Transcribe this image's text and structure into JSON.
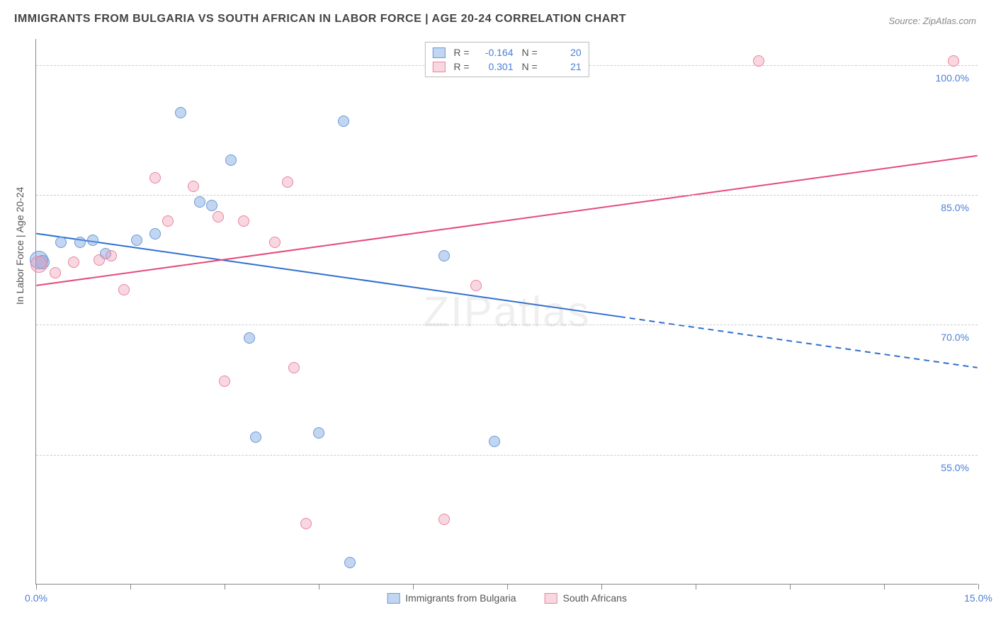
{
  "title": "IMMIGRANTS FROM BULGARIA VS SOUTH AFRICAN IN LABOR FORCE | AGE 20-24 CORRELATION CHART",
  "source": "Source: ZipAtlas.com",
  "watermark": "ZIPatlas",
  "chart": {
    "type": "scatter",
    "ylabel": "In Labor Force | Age 20-24",
    "xlim": [
      0,
      15
    ],
    "ylim": [
      40,
      103
    ],
    "x_ticks": [
      0,
      1.5,
      3,
      4.5,
      6,
      7.5,
      9,
      10.5,
      12,
      13.5,
      15
    ],
    "x_tick_labels": {
      "0": "0.0%",
      "15": "15.0%"
    },
    "y_gridlines": [
      55,
      70,
      85,
      100
    ],
    "y_tick_labels": {
      "55": "55.0%",
      "70": "70.0%",
      "85": "85.0%",
      "100": "100.0%"
    },
    "grid_color": "#cccccc",
    "axis_color": "#888888",
    "tick_label_color": "#4a7fd8",
    "label_color": "#555555",
    "background_color": "#ffffff",
    "point_radius": 8,
    "series": [
      {
        "name": "Immigrants from Bulgaria",
        "fill_color": "rgba(120,165,225,0.45)",
        "stroke_color": "#6a9ad8",
        "R": "-0.164",
        "N": "20",
        "trend": {
          "color": "#2f6fd0",
          "width": 2,
          "y_at_x0": 80.5,
          "y_at_x15": 65.0,
          "solid_until_x": 9.3
        },
        "points": [
          {
            "x": 0.05,
            "y": 77.5,
            "r": 13
          },
          {
            "x": 0.1,
            "y": 77.2,
            "r": 10
          },
          {
            "x": 0.4,
            "y": 79.5
          },
          {
            "x": 0.7,
            "y": 79.5
          },
          {
            "x": 0.9,
            "y": 79.8
          },
          {
            "x": 1.1,
            "y": 78.2
          },
          {
            "x": 1.6,
            "y": 79.8
          },
          {
            "x": 1.9,
            "y": 80.5
          },
          {
            "x": 2.3,
            "y": 94.5
          },
          {
            "x": 2.6,
            "y": 84.2
          },
          {
            "x": 2.8,
            "y": 83.8
          },
          {
            "x": 3.1,
            "y": 89.0
          },
          {
            "x": 3.4,
            "y": 68.5
          },
          {
            "x": 3.5,
            "y": 57.0
          },
          {
            "x": 4.5,
            "y": 57.5
          },
          {
            "x": 4.9,
            "y": 93.5
          },
          {
            "x": 5.0,
            "y": 42.5
          },
          {
            "x": 6.5,
            "y": 78.0
          },
          {
            "x": 7.3,
            "y": 56.5
          }
        ]
      },
      {
        "name": "South Africans",
        "fill_color": "rgba(240,155,180,0.40)",
        "stroke_color": "#e8859f",
        "R": "0.301",
        "N": "21",
        "trend": {
          "color": "#e64a7a",
          "width": 2,
          "y_at_x0": 74.5,
          "y_at_x15": 89.5,
          "solid_until_x": 15
        },
        "points": [
          {
            "x": 0.05,
            "y": 77.0,
            "r": 12
          },
          {
            "x": 0.3,
            "y": 76.0
          },
          {
            "x": 0.6,
            "y": 77.2
          },
          {
            "x": 1.0,
            "y": 77.5
          },
          {
            "x": 1.2,
            "y": 78.0
          },
          {
            "x": 1.4,
            "y": 74.0
          },
          {
            "x": 1.9,
            "y": 87.0
          },
          {
            "x": 2.1,
            "y": 82.0
          },
          {
            "x": 2.5,
            "y": 86.0
          },
          {
            "x": 2.9,
            "y": 82.5
          },
          {
            "x": 3.0,
            "y": 63.5
          },
          {
            "x": 3.3,
            "y": 82.0
          },
          {
            "x": 3.8,
            "y": 79.5
          },
          {
            "x": 4.0,
            "y": 86.5
          },
          {
            "x": 4.1,
            "y": 65.0
          },
          {
            "x": 4.3,
            "y": 47.0
          },
          {
            "x": 6.5,
            "y": 47.5
          },
          {
            "x": 7.0,
            "y": 74.5
          },
          {
            "x": 11.5,
            "y": 100.5
          },
          {
            "x": 14.6,
            "y": 100.5
          }
        ]
      }
    ]
  }
}
